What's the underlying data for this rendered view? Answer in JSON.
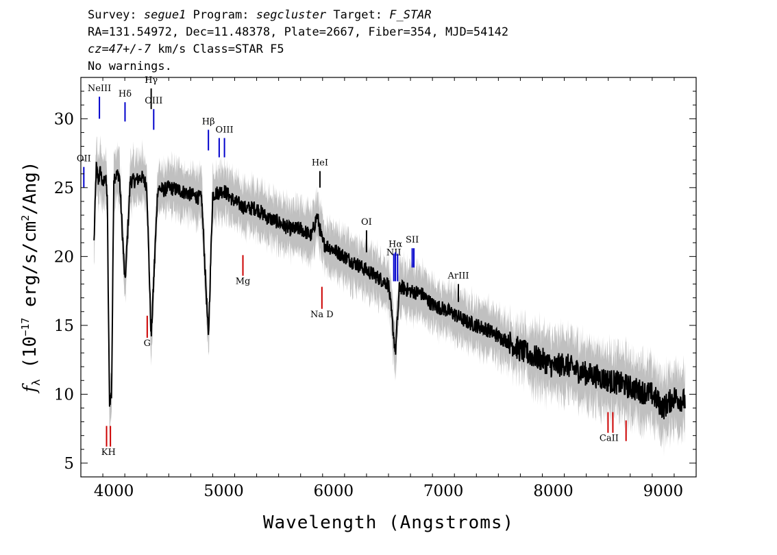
{
  "header": {
    "survey_label": "Survey:",
    "survey": "segue1",
    "program_label": "Program:",
    "program": "segcluster",
    "target_label": "Target:",
    "target": "F_STAR",
    "line2": "RA=131.54972, Dec=11.48378, Plate=2667, Fiber=354, MJD=54142",
    "cz_label": "cz=47+/-7",
    "cz_rest": " km/s Class=STAR F5",
    "warnings": "No warnings."
  },
  "chart_data": {
    "type": "line",
    "xlabel": "Wavelength (Angstroms)",
    "ylabel": "f_λ (10^-17 erg/s/cm^2/Ang)",
    "xlim": [
      3700,
      9300
    ],
    "ylim": [
      4,
      33
    ],
    "xticks": [
      4000,
      5000,
      6000,
      7000,
      8000,
      9000
    ],
    "yticks": [
      5,
      10,
      15,
      20,
      25,
      30
    ],
    "colors": {
      "spectrum": "#000000",
      "error_band": "#c0c0c0",
      "emission_lines": "#0000cc",
      "absorption_lines": "#cc0000",
      "other_lines": "#000000"
    },
    "series": [
      {
        "x": [
          3820,
          3840,
          3860,
          3880,
          3900,
          3920,
          3940,
          3960,
          3980,
          4000,
          4050,
          4102,
          4150,
          4200,
          4250,
          4300,
          4340,
          4400,
          4450,
          4500,
          4600,
          4700,
          4800,
          4861,
          4900,
          5000,
          5100,
          5200,
          5300,
          5400,
          5500,
          5600,
          5700,
          5800,
          5850,
          5900,
          6000,
          6100,
          6200,
          6300,
          6400,
          6500,
          6563,
          6600,
          6700,
          6800,
          6900,
          7000,
          7100,
          7200,
          7300,
          7400,
          7500,
          7600,
          7700,
          7800,
          7900,
          8000,
          8100,
          8200,
          8300,
          8400,
          8500,
          8600,
          8700,
          8800,
          8900,
          9000,
          9100,
          9200
        ],
        "y": [
          21.0,
          26.5,
          25.5,
          26.3,
          25.0,
          26.0,
          24.5,
          9.5,
          10.0,
          25.8,
          26.0,
          18.0,
          25.5,
          25.5,
          25.8,
          25.2,
          14.0,
          25.0,
          24.8,
          25.0,
          24.8,
          24.5,
          24.2,
          14.0,
          24.5,
          24.8,
          24.0,
          23.5,
          23.5,
          22.8,
          22.5,
          22.0,
          22.0,
          21.5,
          23.0,
          21.0,
          20.5,
          20.0,
          19.5,
          19.0,
          18.5,
          18.0,
          13.0,
          17.8,
          17.5,
          17.3,
          16.5,
          16.2,
          15.8,
          15.3,
          15.0,
          14.7,
          14.2,
          13.8,
          13.2,
          12.8,
          12.5,
          12.0,
          12.2,
          11.8,
          11.5,
          11.3,
          11.0,
          10.8,
          10.5,
          10.2,
          10.0,
          9.0,
          9.8,
          9.5
        ]
      }
    ],
    "lines": [
      {
        "label": "OII",
        "wave": 3727,
        "type": "emission",
        "y": [
          25.0,
          26.5
        ],
        "label_y": 26.9
      },
      {
        "label": "NeIII",
        "wave": 3869,
        "type": "emission",
        "y": [
          30.0,
          31.6
        ],
        "label_y": 32.0
      },
      {
        "label": "Hδ",
        "wave": 4102,
        "type": "emission",
        "y": [
          29.8,
          31.2
        ],
        "label_y": 31.6
      },
      {
        "label": "Hγ",
        "wave": 4340,
        "type": "black",
        "y": [
          30.7,
          32.2
        ],
        "label_y": 32.6
      },
      {
        "label": "OIII",
        "wave": 4363,
        "type": "emission",
        "y": [
          29.2,
          30.7
        ],
        "label_y": 31.1
      },
      {
        "label": "Hβ",
        "wave": 4861,
        "type": "emission",
        "y": [
          27.7,
          29.2
        ],
        "label_y": 29.6
      },
      {
        "label": "OIII",
        "wave": 4959,
        "type": "emission",
        "y": [
          27.2,
          28.6
        ],
        "label_y": 0
      },
      {
        "label": "OIII",
        "wave": 5007,
        "type": "emission",
        "y": [
          27.2,
          28.6
        ],
        "label_y": 29.0
      },
      {
        "label": "HeI",
        "wave": 5876,
        "type": "black",
        "y": [
          25.0,
          26.2
        ],
        "label_y": 26.6
      },
      {
        "label": "OI",
        "wave": 6300,
        "type": "black",
        "y": [
          20.3,
          21.9
        ],
        "label_y": 22.3
      },
      {
        "label": "NII",
        "wave": 6548,
        "type": "emission",
        "y": [
          18.2,
          20.2
        ],
        "label_y": 20.1
      },
      {
        "label": "Hα",
        "wave": 6563,
        "type": "emission",
        "y": [
          18.2,
          20.3
        ],
        "label_y": 20.7
      },
      {
        "label": "NII",
        "wave": 6583,
        "type": "emission",
        "y": [
          18.2,
          20.2
        ],
        "label_y": 0
      },
      {
        "label": "SII",
        "wave": 6716,
        "type": "emission",
        "y": [
          19.2,
          20.6
        ],
        "label_y": 21.0
      },
      {
        "label": "SII",
        "wave": 6731,
        "type": "emission",
        "y": [
          19.2,
          20.6
        ],
        "label_y": 0
      },
      {
        "label": "ArIII",
        "wave": 7136,
        "type": "black",
        "y": [
          16.7,
          18.0
        ],
        "label_y": 18.4
      },
      {
        "label": "K",
        "wave": 3934,
        "type": "absorption",
        "y": [
          6.2,
          7.7
        ],
        "label_y": 5.6
      },
      {
        "label": "H",
        "wave": 3969,
        "type": "absorption",
        "y": [
          6.2,
          7.7
        ],
        "label_y": 0
      },
      {
        "label": "G",
        "wave": 4304,
        "type": "absorption",
        "y": [
          14.1,
          15.7
        ],
        "label_y": 13.5
      },
      {
        "label": "Mg",
        "wave": 5175,
        "type": "absorption",
        "y": [
          18.6,
          20.1
        ],
        "label_y": 18.0
      },
      {
        "label": "Na D",
        "wave": 5894,
        "type": "absorption",
        "y": [
          16.2,
          17.8
        ],
        "label_y": 15.6
      },
      {
        "label": "CaII",
        "wave": 8498,
        "type": "absorption",
        "y": [
          7.2,
          8.7
        ],
        "label_y": 6.6
      },
      {
        "label": "CaII",
        "wave": 8542,
        "type": "absorption",
        "y": [
          7.2,
          8.7
        ],
        "label_y": 0
      },
      {
        "label": "CaII",
        "wave": 8662,
        "type": "absorption",
        "y": [
          6.6,
          8.1
        ],
        "label_y": 0
      }
    ]
  }
}
